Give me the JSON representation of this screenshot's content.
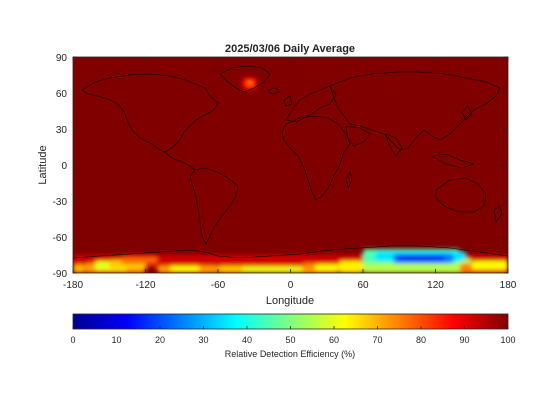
{
  "chart_data": {
    "type": "heatmap",
    "title": "2025/03/06 Daily Average",
    "xlabel": "Longitude",
    "ylabel": "Latitude",
    "xlim": [
      -180,
      180
    ],
    "ylim": [
      -90,
      90
    ],
    "x_ticks": [
      -180,
      -120,
      -60,
      0,
      60,
      120,
      180
    ],
    "y_ticks": [
      90,
      60,
      30,
      0,
      -30,
      -60,
      -90
    ],
    "grid": false,
    "colormap": "jet",
    "background_value": 100,
    "colorbar": {
      "label": "Relative Detection Efficiency (%)",
      "range": [
        0,
        100
      ],
      "ticks": [
        0,
        10,
        20,
        30,
        40,
        50,
        60,
        70,
        80,
        90,
        100
      ],
      "placement": "bottom"
    },
    "cells": [
      {
        "lon": [
          -40,
          -28
        ],
        "lat": [
          63,
          73
        ],
        "value": 88
      },
      {
        "lon": [
          -36,
          -31
        ],
        "lat": [
          66,
          70
        ],
        "value": 75
      },
      {
        "lon": [
          -180,
          180
        ],
        "lat": [
          -86,
          -75
        ],
        "value": 92
      },
      {
        "lon": [
          -180,
          -170
        ],
        "lat": [
          -90,
          -83
        ],
        "value": 70
      },
      {
        "lon": [
          -170,
          -120
        ],
        "lat": [
          -90,
          -82
        ],
        "value": 72
      },
      {
        "lon": [
          -162,
          -135
        ],
        "lat": [
          -88,
          -80
        ],
        "value": 60
      },
      {
        "lon": [
          -150,
          -120
        ],
        "lat": [
          -86,
          -79
        ],
        "value": 68
      },
      {
        "lon": [
          -140,
          -110
        ],
        "lat": [
          -82,
          -76
        ],
        "value": 78
      },
      {
        "lon": [
          -110,
          -60
        ],
        "lat": [
          -90,
          -84
        ],
        "value": 72
      },
      {
        "lon": [
          -100,
          -75
        ],
        "lat": [
          -89,
          -84
        ],
        "value": 62
      },
      {
        "lon": [
          -60,
          40
        ],
        "lat": [
          -90,
          -84
        ],
        "value": 68
      },
      {
        "lon": [
          -40,
          10
        ],
        "lat": [
          -89,
          -85
        ],
        "value": 60
      },
      {
        "lon": [
          10,
          45
        ],
        "lat": [
          -88,
          -82
        ],
        "value": 74
      },
      {
        "lon": [
          20,
          40
        ],
        "lat": [
          -88,
          -83
        ],
        "value": 62
      },
      {
        "lon": [
          40,
          60
        ],
        "lat": [
          -90,
          -80
        ],
        "value": 64
      },
      {
        "lon": [
          60,
          150
        ],
        "lat": [
          -90,
          -78
        ],
        "value": 55
      },
      {
        "lon": [
          60,
          140
        ],
        "lat": [
          -82,
          -70
        ],
        "value": 45
      },
      {
        "lon": [
          70,
          145
        ],
        "lat": [
          -80,
          -72
        ],
        "value": 35
      },
      {
        "lon": [
          85,
          135
        ],
        "lat": [
          -82,
          -74
        ],
        "value": 25
      },
      {
        "lon": [
          88,
          128
        ],
        "lat": [
          -80,
          -76
        ],
        "value": 15
      },
      {
        "lon": [
          95,
          120
        ],
        "lat": [
          -79,
          -77
        ],
        "value": 8
      },
      {
        "lon": [
          140,
          180
        ],
        "lat": [
          -90,
          -82
        ],
        "value": 75
      },
      {
        "lon": [
          150,
          180
        ],
        "lat": [
          -87,
          -80
        ],
        "value": 62
      }
    ]
  }
}
